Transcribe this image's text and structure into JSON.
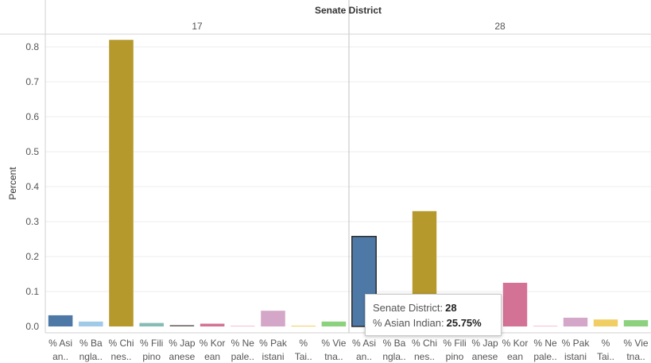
{
  "chart_data": {
    "type": "bar",
    "column_header": "Senate District",
    "ylabel": "Percent",
    "ylim": [
      0,
      0.9
    ],
    "yticks": [
      0.0,
      0.1,
      0.2,
      0.3,
      0.4,
      0.5,
      0.6,
      0.7,
      0.8
    ],
    "ytick_labels": [
      "0.0",
      "0.1",
      "0.2",
      "0.3",
      "0.4",
      "0.5",
      "0.6",
      "0.7",
      "0.8"
    ],
    "grid": true,
    "categories": [
      "% Asi an..",
      "% Ba ngla..",
      "% Chi nes..",
      "% Fili pino",
      "% Jap anese",
      "% Kor ean",
      "% Ne pale..",
      "% Pak istani",
      "% Tai..",
      "% Vie tna.."
    ],
    "category_colors": [
      "#4e79a7",
      "#a0cbe8",
      "#b6992d",
      "#86bcb6",
      "#79706e",
      "#d37295",
      "#fabfd2",
      "#d4a6c8",
      "#f1ce63",
      "#8cd17d"
    ],
    "panels": [
      {
        "name": "17",
        "values": [
          0.032,
          0.014,
          0.82,
          0.01,
          0.004,
          0.008,
          0.0,
          0.045,
          0.002,
          0.014
        ]
      },
      {
        "name": "28",
        "values": [
          0.2575,
          0.015,
          0.33,
          0.01,
          0.004,
          0.125,
          0.002,
          0.025,
          0.02,
          0.018
        ]
      }
    ],
    "highlight": {
      "panel": 1,
      "category": 0
    }
  },
  "tooltip": {
    "district_label": "Senate District:",
    "district_value": "28",
    "measure_label": "% Asian Indian:",
    "measure_value": "25.75%"
  }
}
